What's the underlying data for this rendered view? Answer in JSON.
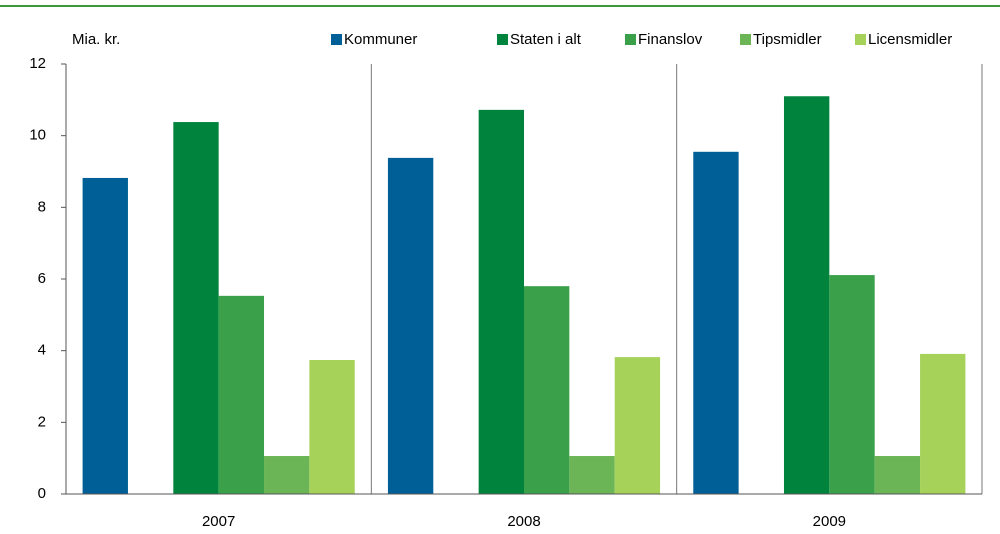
{
  "chart_data": {
    "type": "bar",
    "y_axis_label": "Mia. kr.",
    "categories": [
      "2007",
      "2008",
      "2009"
    ],
    "series": [
      {
        "name": "Kommuner",
        "color": "#005f96",
        "values": [
          8.82,
          9.38,
          9.55
        ]
      },
      {
        "name": "Staten i alt",
        "color": "#00843d",
        "values": [
          10.38,
          10.72,
          11.1
        ]
      },
      {
        "name": "Finanslov",
        "color": "#3aa14a",
        "values": [
          5.53,
          5.8,
          6.11
        ]
      },
      {
        "name": "Tipsmidler",
        "color": "#6cb556",
        "values": [
          1.06,
          1.06,
          1.06
        ]
      },
      {
        "name": "Licensmidler",
        "color": "#a6d25a",
        "values": [
          3.74,
          3.82,
          3.91
        ]
      }
    ],
    "ylim": [
      0,
      12
    ],
    "yticks": [
      0,
      2,
      4,
      6,
      8,
      10,
      12
    ],
    "grid": false,
    "legend": "top"
  }
}
